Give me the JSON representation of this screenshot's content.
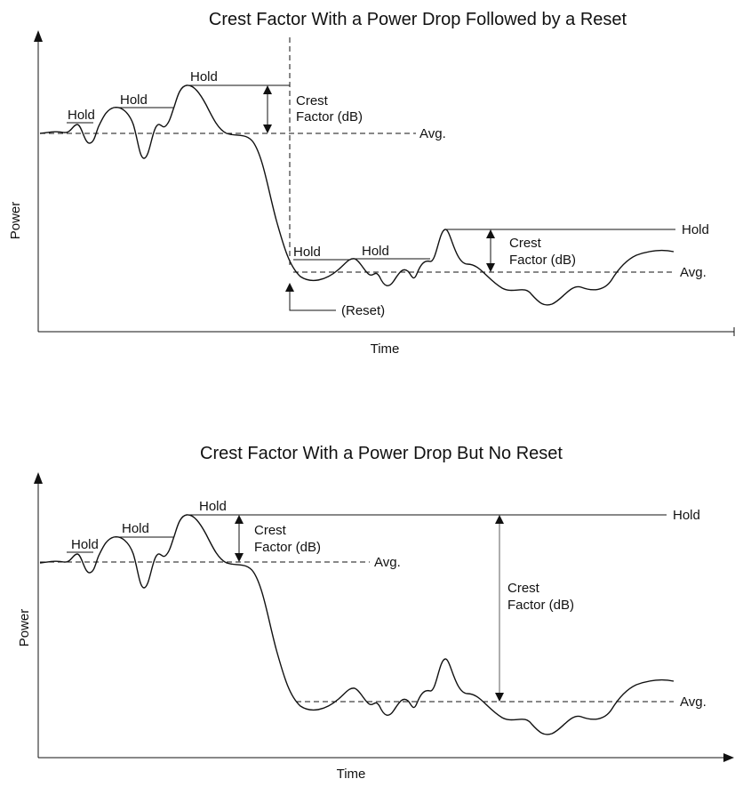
{
  "panel_top": {
    "title": "Crest Factor With a Power Drop Followed by a Reset",
    "y_axis_label": "Power",
    "x_axis_label": "Time",
    "hold_labels": [
      "Hold",
      "Hold",
      "Hold",
      "Hold",
      "Hold",
      "Hold"
    ],
    "avg_labels": [
      "Avg.",
      "Avg."
    ],
    "crest_labels": [
      {
        "line1": "Crest",
        "line2": "Factor (dB)"
      },
      {
        "line1": "Crest",
        "line2": "Factor (dB)"
      }
    ],
    "reset_label": "(Reset)"
  },
  "panel_bottom": {
    "title": "Crest Factor With a Power Drop But No Reset",
    "y_axis_label": "Power",
    "x_axis_label": "Time",
    "hold_labels": [
      "Hold",
      "Hold",
      "Hold",
      "Hold"
    ],
    "avg_labels": [
      "Avg.",
      "Avg."
    ],
    "crest_labels": [
      {
        "line1": "Crest",
        "line2": "Factor (dB)"
      },
      {
        "line1": "Crest",
        "line2": "Factor (dB)"
      }
    ]
  }
}
